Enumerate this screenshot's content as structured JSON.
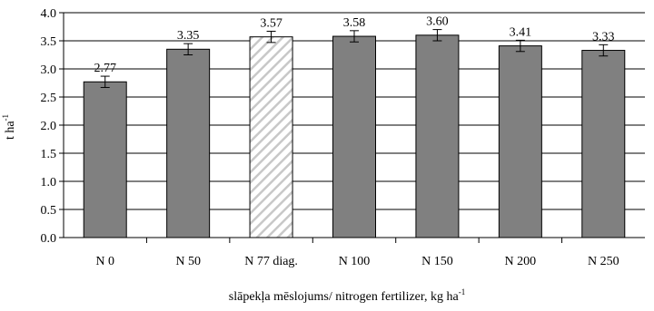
{
  "chart_data": {
    "type": "bar",
    "categories": [
      "N 0",
      "N 50",
      "N 77 diag.",
      "N 100",
      "N 150",
      "N 200",
      "N 250"
    ],
    "values": [
      2.77,
      3.35,
      3.57,
      3.58,
      3.6,
      3.41,
      3.33
    ],
    "data_labels": [
      "2.77",
      "3.35",
      "3.57",
      "3.58",
      "3.60",
      "3.41",
      "3.33"
    ],
    "error": [
      0.1,
      0.1,
      0.1,
      0.1,
      0.1,
      0.1,
      0.1
    ],
    "highlight_index": 2,
    "xlabel": "slāpekļa mēslojums/ nitrogen fertilizer, kg ha",
    "xlabel_sup": "-1",
    "ylabel": "t ha",
    "ylabel_sup": "-1",
    "ylim": [
      0,
      4.0
    ],
    "yticks": [
      0.0,
      0.5,
      1.0,
      1.5,
      2.0,
      2.5,
      3.0,
      3.5,
      4.0
    ],
    "ytick_labels": [
      "0.0",
      "0.5",
      "1.0",
      "1.5",
      "2.0",
      "2.5",
      "3.0",
      "3.5",
      "4.0"
    ],
    "grid": true,
    "colors": {
      "bar_fill": "#808080",
      "bar_stroke": "#000000",
      "hatch_stroke": "#c8c8c8",
      "grid": "#000000"
    }
  }
}
